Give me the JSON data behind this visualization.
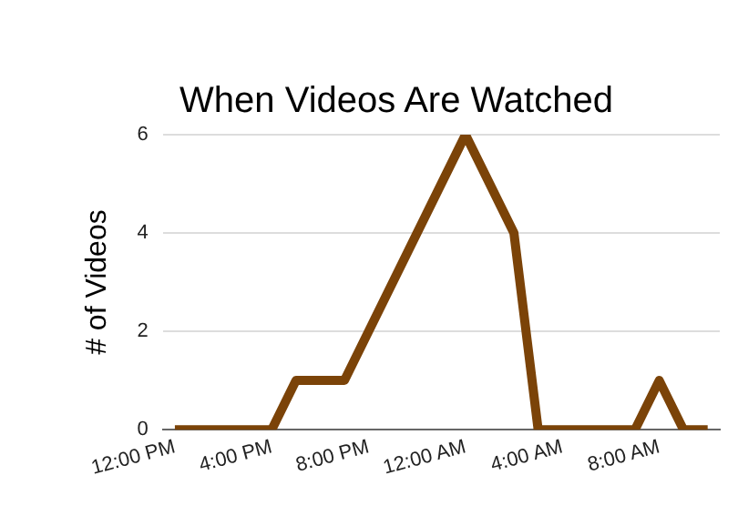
{
  "chart_data": {
    "type": "line",
    "title": "When Videos Are Watched",
    "ylabel": "# of Videos",
    "x": [
      "--01-01T12:00",
      "--01-01T16:00",
      "--01-01T17:00",
      "--01-01T19:00",
      "--01-02T00:00",
      "--01-02T02:00",
      "--01-02T03:00",
      "--01-02T07:00",
      "--01-02T08:00",
      "--01-02T09:00",
      "--01-02T10:00"
    ],
    "series": [
      {
        "color": "#7b4308",
        "values": [
          0,
          0,
          1,
          1,
          6,
          4,
          0,
          0,
          1,
          0,
          0
        ]
      }
    ],
    "xlim": [
      "--01-01T11:30",
      "--01-02T10:30"
    ],
    "xticks": [
      {
        "value": "--01-01T12:00",
        "label": "12:00 PM"
      },
      {
        "value": "--01-01T16:00",
        "label": "4:00 PM"
      },
      {
        "value": "--01-01T20:00",
        "label": "8:00 PM"
      },
      {
        "value": "--01-02T00:00",
        "label": "12:00 AM"
      },
      {
        "value": "--01-02T04:00",
        "label": "4:00 AM"
      },
      {
        "value": "--01-02T08:00",
        "label": "8:00 AM"
      }
    ],
    "ylim": [
      0,
      6
    ],
    "yticks": [
      0,
      2,
      4,
      6
    ],
    "grid": "y",
    "marker": "none",
    "line_style": "solid",
    "legend": false
  }
}
